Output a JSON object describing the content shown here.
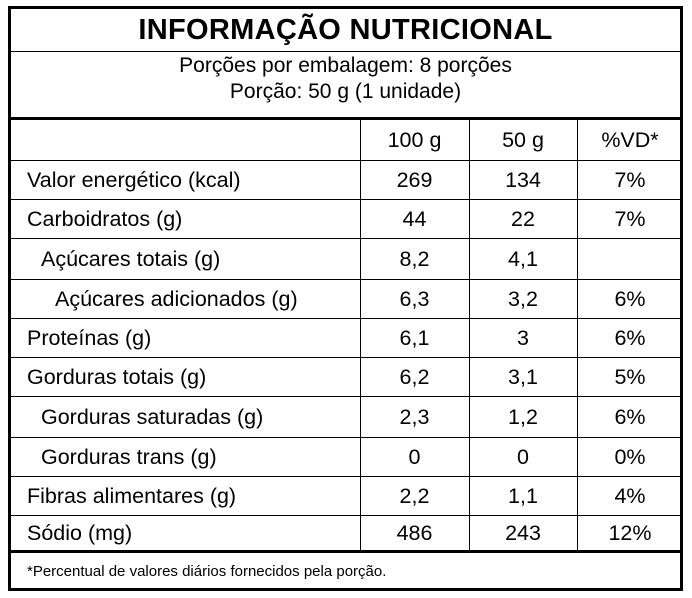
{
  "title": "INFORMAÇÃO NUTRICIONAL",
  "servings_per_package": "Porções por embalagem: 8 porções",
  "serving_size": "Porção: 50 g (1 unidade)",
  "columns": [
    "100 g",
    "50 g",
    "%VD*"
  ],
  "rows": [
    {
      "name": "Valor energético (kcal)",
      "per100": "269",
      "per_serving": "134",
      "dv": "7%"
    },
    {
      "name": "Carboidratos (g)",
      "per100": "44",
      "per_serving": "22",
      "dv": "7%"
    },
    {
      "name": "Açúcares totais (g)",
      "per100": "8,2",
      "per_serving": "4,1",
      "dv": ""
    },
    {
      "name": "Açúcares adicionados (g)",
      "per100": "6,3",
      "per_serving": "3,2",
      "dv": "6%"
    },
    {
      "name": "Proteínas (g)",
      "per100": "6,1",
      "per_serving": "3",
      "dv": "6%"
    },
    {
      "name": "Gorduras totais (g)",
      "per100": "6,2",
      "per_serving": "3,1",
      "dv": "5%"
    },
    {
      "name": "Gorduras saturadas (g)",
      "per100": "2,3",
      "per_serving": "1,2",
      "dv": "6%"
    },
    {
      "name": "Gorduras trans (g)",
      "per100": "0",
      "per_serving": "0",
      "dv": "0%"
    },
    {
      "name": "Fibras alimentares (g)",
      "per100": "2,2",
      "per_serving": "1,1",
      "dv": "4%"
    },
    {
      "name": "Sódio (mg)",
      "per100": "486",
      "per_serving": "243",
      "dv": "12%"
    }
  ],
  "footnote": "*Percentual de valores diários fornecidos pela porção."
}
